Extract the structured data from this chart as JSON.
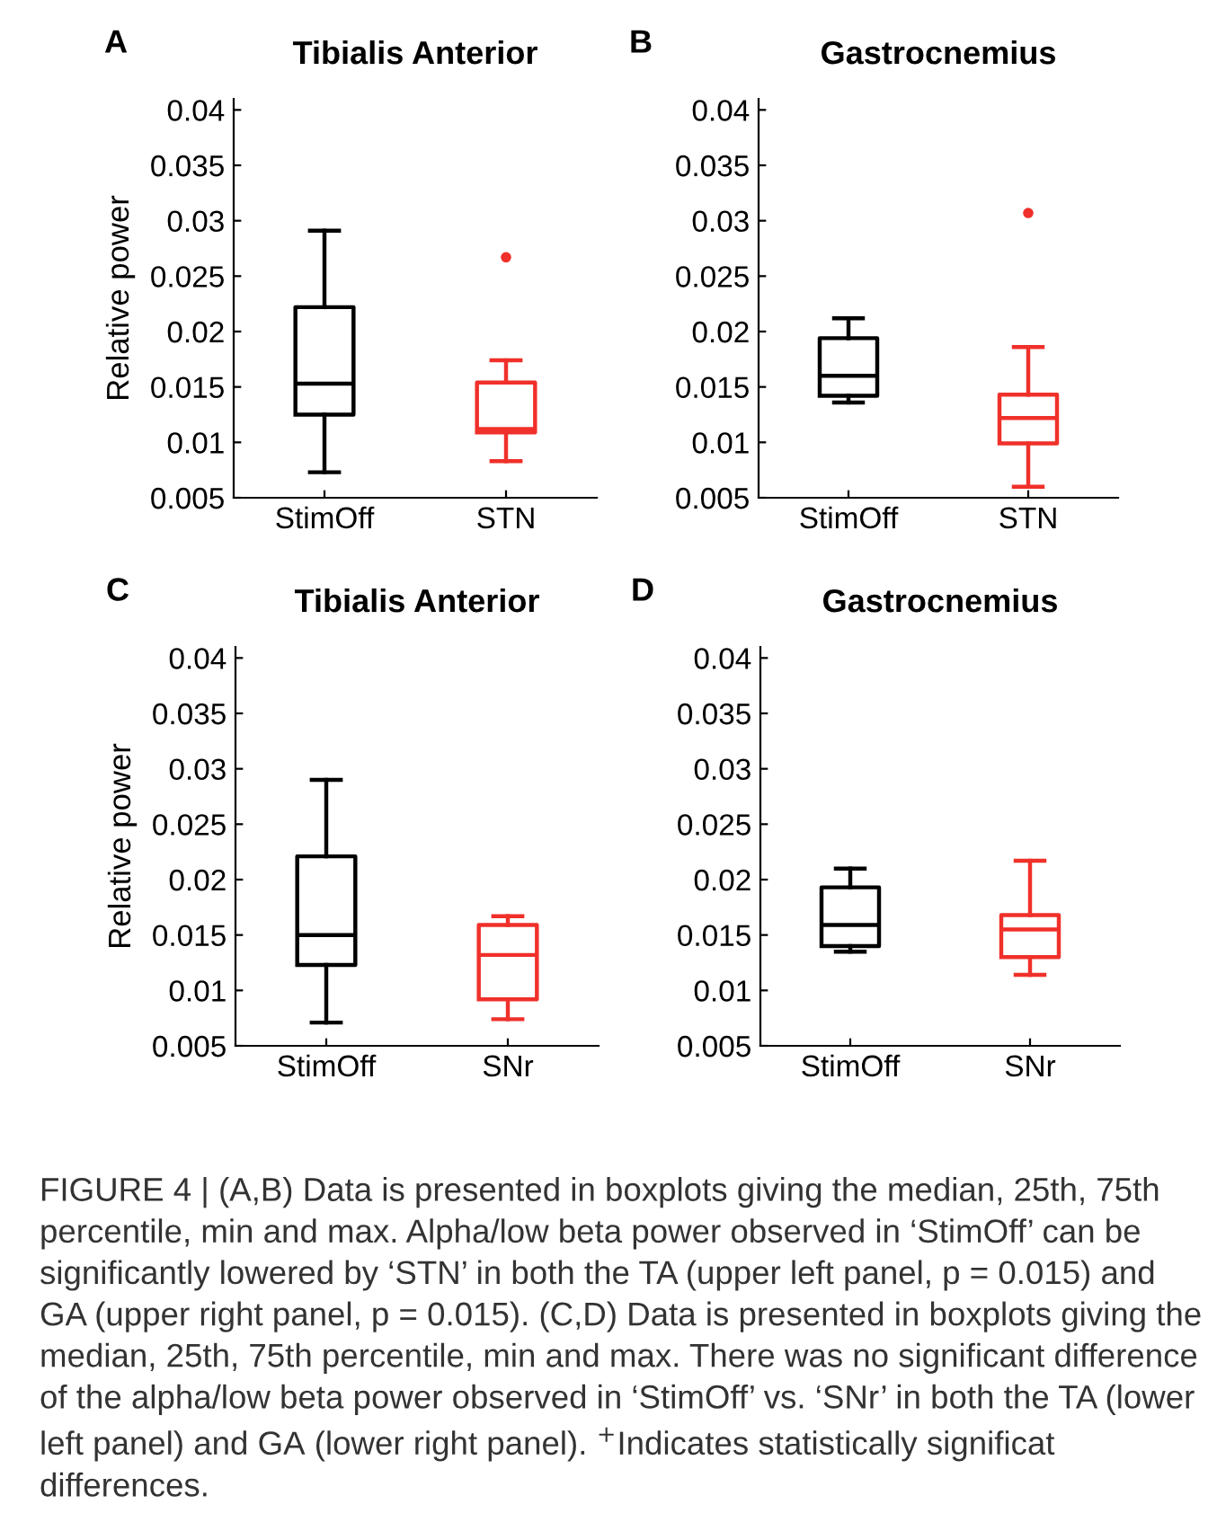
{
  "chart_data": [
    {
      "type": "box",
      "title": "Tibialis Anterior",
      "ylabel": "Relative power",
      "annotations": [
        "A"
      ],
      "categories": [
        "StimOff",
        "STN"
      ],
      "colors": [
        "#000000",
        "#f0302a"
      ],
      "boxes": [
        {
          "low": 0.0073,
          "q1": 0.0125,
          "median": 0.0153,
          "q3": 0.0222,
          "high": 0.0291
        },
        {
          "low": 0.0083,
          "q1": 0.0109,
          "median": 0.0112,
          "q3": 0.0154,
          "high": 0.0174,
          "outliers": [
            0.0267
          ]
        }
      ],
      "ylim": [
        0.005,
        0.041
      ],
      "yticks": [
        0.005,
        0.01,
        0.015,
        0.02,
        0.025,
        0.03,
        0.035,
        0.04
      ],
      "grid": false
    },
    {
      "type": "box",
      "title": "Gastrocnemius",
      "annotations": [
        "B"
      ],
      "categories": [
        "StimOff",
        "STN"
      ],
      "colors": [
        "#000000",
        "#f0302a"
      ],
      "boxes": [
        {
          "low": 0.0136,
          "q1": 0.0142,
          "median": 0.016,
          "q3": 0.0194,
          "high": 0.0212
        },
        {
          "low": 0.006,
          "q1": 0.0099,
          "median": 0.0122,
          "q3": 0.0143,
          "high": 0.0186,
          "outliers": [
            0.0307
          ]
        }
      ],
      "ylim": [
        0.005,
        0.041
      ],
      "yticks": [
        0.005,
        0.01,
        0.015,
        0.02,
        0.025,
        0.03,
        0.035,
        0.04
      ],
      "grid": false
    },
    {
      "type": "box",
      "title": "Tibialis Anterior",
      "ylabel": "Relative power",
      "annotations": [
        "C"
      ],
      "categories": [
        "StimOff",
        "SNr"
      ],
      "colors": [
        "#000000",
        "#f0302a"
      ],
      "boxes": [
        {
          "low": 0.0071,
          "q1": 0.0123,
          "median": 0.015,
          "q3": 0.0221,
          "high": 0.029
        },
        {
          "low": 0.0074,
          "q1": 0.0092,
          "median": 0.0132,
          "q3": 0.0159,
          "high": 0.0167
        }
      ],
      "ylim": [
        0.005,
        0.041
      ],
      "yticks": [
        0.005,
        0.01,
        0.015,
        0.02,
        0.025,
        0.03,
        0.035,
        0.04
      ],
      "grid": false
    },
    {
      "type": "box",
      "title": "Gastrocnemius",
      "annotations": [
        "D",
        "FIGURE 4 | (A,B) Data is presented in boxplots giving the median, 25th, 75th percentile, min and max. Alpha/low beta power observed in ‘StimOff’ can be significantly lowered by ‘STN’ in both the TA (upper left panel, p = 0.015) and GA (upper right panel, p = 0.015). (C,D) Data is presented in boxplots giving the median, 25th, 75th percentile, min and max. There was no significant difference of the alpha/low beta power observed in ‘StimOff’ vs. ‘SNr’ in both the TA (lower left panel) and GA (lower right panel). $^{+}$Indicates statistically significat differences."
      ],
      "categories": [
        "StimOff",
        "SNr"
      ],
      "colors": [
        "#000000",
        "#f0302a"
      ],
      "boxes": [
        {
          "low": 0.0135,
          "q1": 0.014,
          "median": 0.0159,
          "q3": 0.0193,
          "high": 0.021
        },
        {
          "low": 0.0114,
          "q1": 0.013,
          "median": 0.0155,
          "q3": 0.0168,
          "high": 0.0217
        }
      ],
      "ylim": [
        0.005,
        0.041
      ],
      "yticks": [
        0.005,
        0.01,
        0.015,
        0.02,
        0.025,
        0.03,
        0.035,
        0.04
      ],
      "grid": false
    }
  ]
}
